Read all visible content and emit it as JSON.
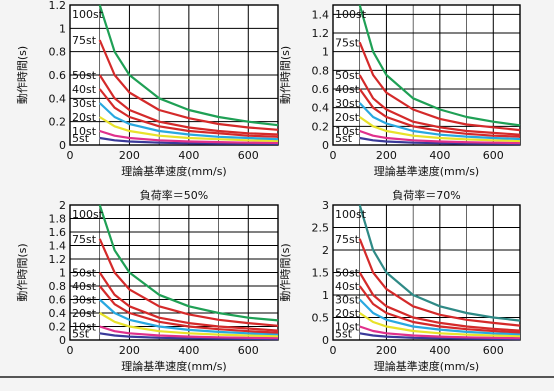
{
  "chart_data": [
    {
      "type": "line",
      "title": "",
      "xlabel": "理論基準速度(mm/s)",
      "ylabel": "動作時間(s)",
      "xlim": [
        0,
        700
      ],
      "ylim": [
        0,
        1.2
      ],
      "xticks": [
        "0",
        "200",
        "400",
        "600"
      ],
      "yticks": [
        "0",
        "0.2",
        "0.4",
        "0.6",
        "0.8",
        "1",
        "1.2"
      ],
      "x": [
        100,
        150,
        200,
        300,
        400,
        500,
        600,
        700
      ],
      "grid": true,
      "series": [
        {
          "name": "100st",
          "color": "#1fa055",
          "values": [
            1.2,
            0.8,
            0.6,
            0.4,
            0.3,
            0.24,
            0.2,
            0.17
          ]
        },
        {
          "name": "75st",
          "color": "#d42a2a",
          "values": [
            0.9,
            0.6,
            0.45,
            0.3,
            0.23,
            0.18,
            0.15,
            0.13
          ]
        },
        {
          "name": "50st",
          "color": "#d42a2a",
          "values": [
            0.6,
            0.4,
            0.3,
            0.2,
            0.15,
            0.12,
            0.1,
            0.09
          ]
        },
        {
          "name": "40st",
          "color": "#d42a2a",
          "values": [
            0.48,
            0.32,
            0.24,
            0.16,
            0.12,
            0.1,
            0.08,
            0.07
          ]
        },
        {
          "name": "30st",
          "color": "#28a8e0",
          "values": [
            0.36,
            0.24,
            0.18,
            0.12,
            0.09,
            0.07,
            0.06,
            0.05
          ]
        },
        {
          "name": "20st",
          "color": "#e8e22a",
          "values": [
            0.24,
            0.16,
            0.12,
            0.08,
            0.06,
            0.05,
            0.04,
            0.035
          ]
        },
        {
          "name": "10st",
          "color": "#e0308c",
          "values": [
            0.12,
            0.08,
            0.06,
            0.04,
            0.03,
            0.025,
            0.02,
            0.018
          ]
        },
        {
          "name": "5st",
          "color": "#3a3a9a",
          "values": [
            0.06,
            0.04,
            0.03,
            0.02,
            0.015,
            0.012,
            0.01,
            0.009
          ]
        }
      ]
    },
    {
      "type": "line",
      "title": "",
      "xlabel": "理論基準速度(mm/s)",
      "ylabel": "動作時間(s)",
      "xlim": [
        0,
        700
      ],
      "ylim": [
        0,
        1.5
      ],
      "xticks": [
        "0",
        "200",
        "400",
        "600"
      ],
      "yticks": [
        "0",
        "0.2",
        "0.4",
        "0.6",
        "0.8",
        "1",
        "1.2",
        "1.4"
      ],
      "x": [
        100,
        150,
        200,
        300,
        400,
        500,
        600,
        700
      ],
      "grid": true,
      "series": [
        {
          "name": "100st",
          "color": "#1fa055",
          "values": [
            1.5,
            1.0,
            0.75,
            0.5,
            0.38,
            0.3,
            0.25,
            0.21
          ]
        },
        {
          "name": "75st",
          "color": "#d42a2a",
          "values": [
            1.1,
            0.75,
            0.56,
            0.38,
            0.28,
            0.22,
            0.19,
            0.16
          ]
        },
        {
          "name": "50st",
          "color": "#d42a2a",
          "values": [
            0.75,
            0.5,
            0.38,
            0.25,
            0.19,
            0.15,
            0.13,
            0.11
          ]
        },
        {
          "name": "40st",
          "color": "#d42a2a",
          "values": [
            0.6,
            0.4,
            0.3,
            0.2,
            0.15,
            0.12,
            0.1,
            0.09
          ]
        },
        {
          "name": "30st",
          "color": "#28a8e0",
          "values": [
            0.45,
            0.3,
            0.23,
            0.15,
            0.11,
            0.09,
            0.075,
            0.064
          ]
        },
        {
          "name": "20st",
          "color": "#e8e22a",
          "values": [
            0.3,
            0.2,
            0.15,
            0.1,
            0.075,
            0.06,
            0.05,
            0.043
          ]
        },
        {
          "name": "10st",
          "color": "#e0308c",
          "values": [
            0.15,
            0.1,
            0.075,
            0.05,
            0.038,
            0.03,
            0.025,
            0.021
          ]
        },
        {
          "name": "5st",
          "color": "#3a3a9a",
          "values": [
            0.075,
            0.05,
            0.038,
            0.025,
            0.019,
            0.015,
            0.013,
            0.011
          ]
        }
      ]
    },
    {
      "type": "line",
      "title": "負荷率＝50%",
      "xlabel": "理論基準速度(mm/s)",
      "ylabel": "動作時間(s)",
      "xlim": [
        0,
        700
      ],
      "ylim": [
        0,
        2
      ],
      "xticks": [
        "0",
        "200",
        "400",
        "600"
      ],
      "yticks": [
        "0",
        "0.2",
        "0.4",
        "0.6",
        "0.8",
        "1",
        "1.2",
        "1.4",
        "1.6",
        "1.8",
        "2"
      ],
      "x": [
        100,
        150,
        200,
        300,
        400,
        500,
        600,
        700
      ],
      "grid": true,
      "series": [
        {
          "name": "100st",
          "color": "#1fa055",
          "values": [
            2.0,
            1.33,
            1.0,
            0.67,
            0.5,
            0.4,
            0.33,
            0.29
          ]
        },
        {
          "name": "75st",
          "color": "#d42a2a",
          "values": [
            1.5,
            1.0,
            0.75,
            0.5,
            0.38,
            0.3,
            0.25,
            0.21
          ]
        },
        {
          "name": "50st",
          "color": "#d42a2a",
          "values": [
            1.0,
            0.67,
            0.5,
            0.33,
            0.25,
            0.2,
            0.17,
            0.14
          ]
        },
        {
          "name": "40st",
          "color": "#d42a2a",
          "values": [
            0.8,
            0.53,
            0.4,
            0.27,
            0.2,
            0.16,
            0.13,
            0.11
          ]
        },
        {
          "name": "30st",
          "color": "#28a8e0",
          "values": [
            0.6,
            0.4,
            0.3,
            0.2,
            0.15,
            0.12,
            0.1,
            0.086
          ]
        },
        {
          "name": "20st",
          "color": "#e8e22a",
          "values": [
            0.4,
            0.27,
            0.2,
            0.13,
            0.1,
            0.08,
            0.067,
            0.057
          ]
        },
        {
          "name": "10st",
          "color": "#e0308c",
          "values": [
            0.2,
            0.13,
            0.1,
            0.067,
            0.05,
            0.04,
            0.033,
            0.029
          ]
        },
        {
          "name": "5st",
          "color": "#3a3a9a",
          "values": [
            0.1,
            0.067,
            0.05,
            0.033,
            0.025,
            0.02,
            0.017,
            0.014
          ]
        }
      ]
    },
    {
      "type": "line",
      "title": "負荷率＝70%",
      "xlabel": "理論基準速度(mm/s)",
      "ylabel": "動作時間(s)",
      "xlim": [
        0,
        700
      ],
      "ylim": [
        0,
        3
      ],
      "xticks": [
        "0",
        "200",
        "400",
        "600"
      ],
      "yticks": [
        "0",
        "0.5",
        "1",
        "1.5",
        "2",
        "2.5",
        "3"
      ],
      "x": [
        100,
        150,
        200,
        300,
        400,
        500,
        600,
        700
      ],
      "grid": true,
      "series": [
        {
          "name": "100st",
          "color": "#2f8a86",
          "values": [
            3.0,
            2.0,
            1.5,
            1.0,
            0.75,
            0.6,
            0.5,
            0.43
          ]
        },
        {
          "name": "75st",
          "color": "#d42a2a",
          "values": [
            2.25,
            1.5,
            1.13,
            0.75,
            0.56,
            0.45,
            0.38,
            0.32
          ]
        },
        {
          "name": "50st",
          "color": "#d42a2a",
          "values": [
            1.5,
            1.0,
            0.75,
            0.5,
            0.38,
            0.3,
            0.25,
            0.21
          ]
        },
        {
          "name": "40st",
          "color": "#d42a2a",
          "values": [
            1.2,
            0.8,
            0.6,
            0.4,
            0.3,
            0.24,
            0.2,
            0.17
          ]
        },
        {
          "name": "30st",
          "color": "#28a8e0",
          "values": [
            0.9,
            0.6,
            0.45,
            0.3,
            0.23,
            0.18,
            0.15,
            0.13
          ]
        },
        {
          "name": "20st",
          "color": "#e8e22a",
          "values": [
            0.6,
            0.4,
            0.3,
            0.2,
            0.15,
            0.12,
            0.1,
            0.086
          ]
        },
        {
          "name": "10st",
          "color": "#e0308c",
          "values": [
            0.3,
            0.2,
            0.15,
            0.1,
            0.075,
            0.06,
            0.05,
            0.043
          ]
        },
        {
          "name": "5st",
          "color": "#3a3a9a",
          "values": [
            0.15,
            0.1,
            0.075,
            0.05,
            0.038,
            0.03,
            0.025,
            0.021
          ]
        }
      ]
    }
  ]
}
